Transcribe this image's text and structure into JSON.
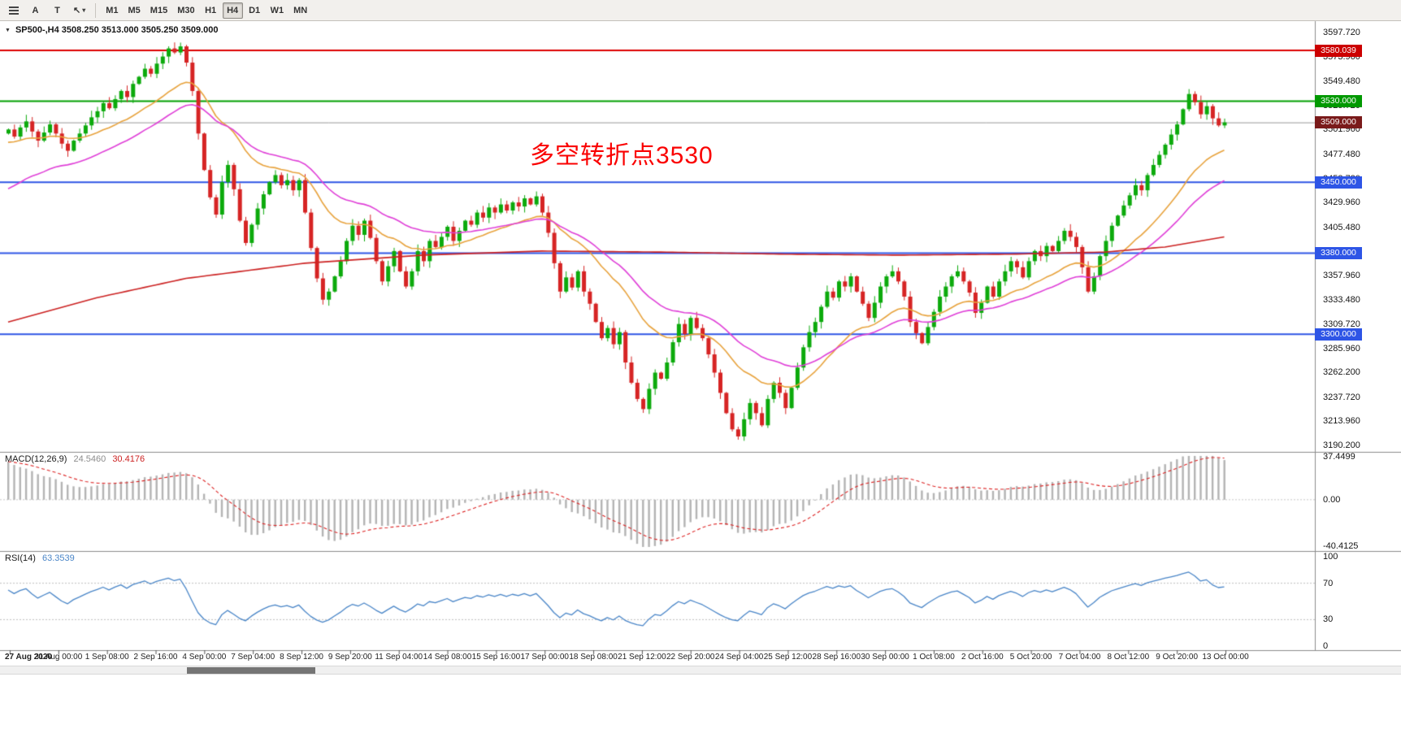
{
  "toolbar": {
    "buttons": [
      {
        "name": "chart-list-button",
        "type": "bars"
      },
      {
        "name": "text-label-a-button",
        "label": "A"
      },
      {
        "name": "text-label-t-button",
        "label": "T"
      },
      {
        "name": "cursor-tool-button",
        "label": "↖",
        "caret": "▾"
      }
    ],
    "timeframes": [
      "M1",
      "M5",
      "M15",
      "M30",
      "H1",
      "H4",
      "D1",
      "W1",
      "MN"
    ],
    "active_timeframe": "H4"
  },
  "chart_header": {
    "collapse_icon": "▼",
    "text": "SP500-,H4 3508.250 3513.000 3505.250 3509.000",
    "symbol": "SP500-",
    "period": "H4",
    "open": "3508.250",
    "high": "3513.000",
    "low": "3505.250",
    "close": "3509.000"
  },
  "annotation": {
    "text": "多空转折点3530",
    "color": "#fa0000"
  },
  "price_axis": {
    "labels": [
      "3597.720",
      "3573.960",
      "3549.480",
      "3525.720",
      "3501.960",
      "3477.480",
      "3453.720",
      "3429.960",
      "3405.480",
      "3381.720",
      "3357.960",
      "3333.480",
      "3309.720",
      "3285.960",
      "3262.200",
      "3237.720",
      "3213.960",
      "3190.200"
    ]
  },
  "time_axis": {
    "labels": [
      "27 Aug 2020",
      "31 Aug 00:00",
      "1 Sep 08:00",
      "2 Sep 16:00",
      "4 Sep 00:00",
      "7 Sep 04:00",
      "8 Sep 12:00",
      "9 Sep 20:00",
      "11 Sep 04:00",
      "14 Sep 08:00",
      "15 Sep 16:00",
      "17 Sep 00:00",
      "18 Sep 08:00",
      "21 Sep 12:00",
      "22 Sep 20:00",
      "24 Sep 04:00",
      "25 Sep 12:00",
      "28 Sep 16:00",
      "30 Sep 00:00",
      "1 Oct 08:00",
      "2 Oct 16:00",
      "5 Oct 20:00",
      "7 Oct 04:00",
      "8 Oct 12:00",
      "9 Oct 20:00",
      "13 Oct 00:00"
    ]
  },
  "macd_panel": {
    "name": "MACD(12,26,9)",
    "value_main": "24.5460",
    "value_signal": "30.4176",
    "axis_labels": [
      "37.4499",
      "0.00",
      "-40.4125"
    ]
  },
  "rsi_panel": {
    "name": "RSI(14)",
    "value": "63.3539",
    "axis_labels": [
      "100",
      "70",
      "30",
      "0"
    ]
  },
  "chart_data": {
    "type": "candlestick",
    "symbol": "SP500-",
    "timeframe": "H4",
    "current_bar": {
      "open": 3508.25,
      "high": 3513.0,
      "low": 3505.25,
      "close": 3509.0
    },
    "y_range": [
      3190.2,
      3597.72
    ],
    "up_color": "#0caa0c",
    "down_color": "#d62424",
    "first_candle_open": 3498,
    "closes": [
      3502,
      3495,
      3504,
      3510,
      3500,
      3491,
      3499,
      3507,
      3498,
      3488,
      3481,
      3491,
      3498,
      3506,
      3514,
      3520,
      3528,
      3523,
      3532,
      3540,
      3534,
      3547,
      3554,
      3562,
      3557,
      3567,
      3574,
      3582,
      3578,
      3584,
      3568,
      3540,
      3498,
      3462,
      3435,
      3418,
      3450,
      3467,
      3443,
      3412,
      3390,
      3408,
      3424,
      3438,
      3450,
      3457,
      3447,
      3452,
      3442,
      3452,
      3420,
      3385,
      3355,
      3334,
      3342,
      3357,
      3372,
      3392,
      3407,
      3398,
      3412,
      3395,
      3372,
      3352,
      3367,
      3382,
      3362,
      3347,
      3362,
      3382,
      3372,
      3392,
      3386,
      3396,
      3406,
      3392,
      3402,
      3412,
      3408,
      3420,
      3415,
      3425,
      3420,
      3428,
      3422,
      3430,
      3426,
      3434,
      3428,
      3436,
      3420,
      3400,
      3370,
      3342,
      3356,
      3346,
      3362,
      3342,
      3330,
      3312,
      3296,
      3306,
      3290,
      3302,
      3272,
      3252,
      3236,
      3226,
      3246,
      3262,
      3256,
      3272,
      3292,
      3310,
      3300,
      3316,
      3306,
      3296,
      3280,
      3262,
      3242,
      3222,
      3206,
      3199,
      3216,
      3232,
      3222,
      3210,
      3236,
      3252,
      3242,
      3227,
      3247,
      3267,
      3287,
      3302,
      3312,
      3327,
      3342,
      3336,
      3352,
      3347,
      3357,
      3342,
      3330,
      3316,
      3331,
      3347,
      3357,
      3362,
      3352,
      3337,
      3312,
      3301,
      3291,
      3307,
      3322,
      3337,
      3347,
      3357,
      3362,
      3352,
      3341,
      3321,
      3331,
      3347,
      3337,
      3352,
      3362,
      3372,
      3366,
      3356,
      3372,
      3382,
      3377,
      3387,
      3382,
      3392,
      3402,
      3396,
      3386,
      3366,
      3342,
      3357,
      3377,
      3392,
      3407,
      3417,
      3427,
      3437,
      3447,
      3442,
      3457,
      3467,
      3477,
      3487,
      3497,
      3507,
      3522,
      3537,
      3529,
      3517,
      3525,
      3513,
      3506,
      3509
    ],
    "moving_averages": [
      {
        "name": "fast-ma",
        "type": "ema",
        "period": 20,
        "seed": 3488,
        "color": "#e8a33d"
      },
      {
        "name": "mid-ma",
        "type": "ema",
        "period": 34,
        "seed": 3440,
        "color": "#e040d8"
      },
      {
        "name": "slow-ma",
        "type": "points",
        "color": "#cc2222",
        "points": [
          [
            0,
            3312
          ],
          [
            15,
            3336
          ],
          [
            30,
            3355
          ],
          [
            50,
            3370
          ],
          [
            70,
            3378
          ],
          [
            90,
            3382
          ],
          [
            110,
            3381
          ],
          [
            130,
            3379
          ],
          [
            150,
            3378
          ],
          [
            170,
            3379
          ],
          [
            185,
            3381
          ],
          [
            195,
            3386
          ],
          [
            205,
            3396
          ]
        ]
      }
    ],
    "horizontal_lines": [
      {
        "price": 3580.039,
        "color": "#dd0000",
        "width": 2,
        "label": "3580.039",
        "label_bg": "#cc0000"
      },
      {
        "price": 3530.0,
        "color": "#00a000",
        "width": 2,
        "label": "3530.000",
        "label_bg": "#009900"
      },
      {
        "price": 3450.0,
        "color": "#2e55e6",
        "width": 2,
        "label": "3450.000",
        "label_bg": "#2e55e6"
      },
      {
        "price": 3380.0,
        "color": "#2e55e6",
        "width": 2,
        "label": "3380.000",
        "label_bg": "#2e55e6"
      },
      {
        "price": 3300.0,
        "color": "#2e55e6",
        "width": 2,
        "label": "3300.000",
        "label_bg": "#2e55e6"
      }
    ],
    "bid_line": {
      "price": 3509.0,
      "color": "#999999",
      "label": "3509.000",
      "label_bg": "#7a1a1a"
    },
    "macd": {
      "fast": 12,
      "slow": 26,
      "signal": 9,
      "range": [
        -40.4125,
        37.4499
      ],
      "histogram_color": "#b4b4b4",
      "signal_color": "#dd2222",
      "seed_fast": 3500,
      "seed_slow": 3465
    },
    "rsi": {
      "period": 14,
      "levels": [
        30,
        70
      ],
      "range": [
        0,
        100
      ],
      "color": "#4a86c8"
    }
  }
}
